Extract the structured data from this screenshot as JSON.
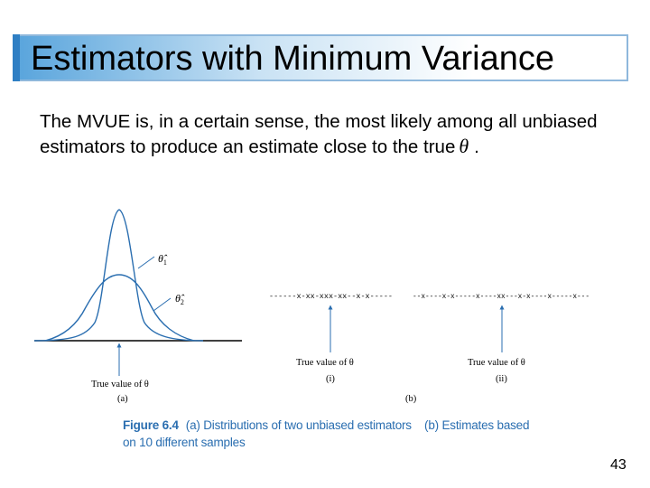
{
  "slide": {
    "title": "Estimators with Minimum Variance",
    "body_text": "The MVUE is, in a certain sense, the most likely among all unbiased estimators to produce an estimate close to the true",
    "body_symbol": "θ",
    "body_end": ".",
    "page_number": "43"
  },
  "figure": {
    "panel_a": {
      "estimator_1": "θ̂",
      "estimator_1_sub": "1",
      "estimator_2": "θ̂",
      "estimator_2_sub": "2",
      "true_value_label": "True value of θ",
      "panel_label": "(a)"
    },
    "panel_b": {
      "sample_i": "------x-xx-xxx-xx--x-x-----",
      "sample_ii": "--x----x-x-----x----xx---x-x----x-----x---",
      "true_value_label_i": "True value of θ",
      "true_value_label_ii": "True value of θ",
      "sub_label_i": "(i)",
      "sub_label_ii": "(ii)",
      "panel_label": "(b)"
    },
    "caption": {
      "label": "Figure 6.4",
      "line1": "(a) Distributions of two unbiased estimators    (b) Estimates based",
      "line2": "on 10 different samples"
    }
  },
  "colors": {
    "accent": "#2f7fc4",
    "curves": "#2a6eb0",
    "caption": "#2a6eb0"
  }
}
